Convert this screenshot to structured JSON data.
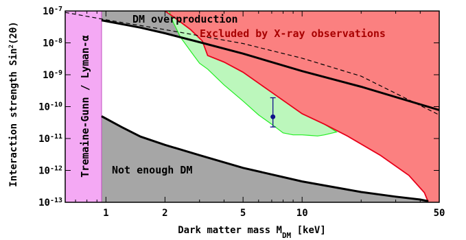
{
  "chart_data": {
    "type": "area",
    "xlabel": "Dark matter mass M_DM [keV]",
    "xlabel_main": "Dark matter mass M",
    "xlabel_sub": "DM",
    "xlabel_unit": " [keV]",
    "ylabel": "Interaction strength Sin²(2θ)",
    "ylabel_main": "Interaction strength Sin",
    "ylabel_sup": "2",
    "ylabel_tail": "(2θ)",
    "xscale": "log",
    "yscale": "log",
    "xlim": [
      0.62,
      50
    ],
    "ylim": [
      1e-13,
      1e-07
    ],
    "x_ticks": [
      {
        "value": 1,
        "label": "1"
      },
      {
        "value": 2,
        "label": "2"
      },
      {
        "value": 5,
        "label": "5"
      },
      {
        "value": 10,
        "label": "10"
      },
      {
        "value": 50,
        "label": "50"
      }
    ],
    "y_ticks": [
      {
        "value": 1e-07,
        "base": "10",
        "exp": "-7"
      },
      {
        "value": 1e-08,
        "base": "10",
        "exp": "-8"
      },
      {
        "value": 1e-09,
        "base": "10",
        "exp": "-9"
      },
      {
        "value": 1e-10,
        "base": "10",
        "exp": "-10"
      },
      {
        "value": 1e-11,
        "base": "10",
        "exp": "-11"
      },
      {
        "value": 1e-12,
        "base": "10",
        "exp": "-12"
      },
      {
        "value": 1e-13,
        "base": "10",
        "exp": "-13"
      }
    ],
    "regions": {
      "tremaine_gunn_lyman_alpha": {
        "label": "Tremaine-Gunn / Lyman-α",
        "x_max": 0.95,
        "color": "#f4a9f4"
      },
      "dm_overproduction": {
        "label": "DM overproduction",
        "color": "#a6a6a6",
        "boundary": [
          [
            0.95,
            5.1e-08
          ],
          [
            1.5,
            3e-08
          ],
          [
            2,
            2e-08
          ],
          [
            3,
            1.05e-08
          ],
          [
            5,
            4.6e-09
          ],
          [
            10,
            1.3e-09
          ],
          [
            20,
            4.2e-10
          ],
          [
            50,
            7.8e-11
          ]
        ]
      },
      "not_enough_dm": {
        "label": "Not enough DM",
        "color": "#a6a6a6",
        "boundary": [
          [
            0.95,
            5e-11
          ],
          [
            1.2,
            2.3e-11
          ],
          [
            1.5,
            1.15e-11
          ],
          [
            2,
            6.3e-12
          ],
          [
            3,
            3e-12
          ],
          [
            5,
            1.2e-12
          ],
          [
            10,
            4.5e-13
          ],
          [
            20,
            2.1e-13
          ],
          [
            30,
            1.5e-13
          ],
          [
            40,
            1.22e-13
          ],
          [
            44,
            1.08e-13
          ]
        ]
      },
      "xray_excluded": {
        "label": "Excluded by X-ray observations",
        "color": "#fb8080",
        "edge_color": "#e8001a",
        "boundary": [
          [
            2.0,
            1e-07
          ],
          [
            2.3,
            5.5e-08
          ],
          [
            2.7,
            2.6e-08
          ],
          [
            3.1,
            1.15e-08
          ],
          [
            3.3,
            4e-09
          ],
          [
            4.0,
            2.5e-09
          ],
          [
            5,
            1.2e-09
          ],
          [
            7,
            2.8e-10
          ],
          [
            10,
            6e-11
          ],
          [
            13,
            2.8e-11
          ],
          [
            17,
            1.2e-11
          ],
          [
            25,
            3e-12
          ],
          [
            35,
            7e-13
          ],
          [
            42,
            2e-13
          ],
          [
            44,
            1e-13
          ]
        ]
      },
      "signal_band": {
        "color": "#bcf7bc",
        "edge_color": "#22ee22",
        "upper": [
          [
            2.0,
            1e-07
          ],
          [
            2.3,
            5.5e-08
          ],
          [
            2.7,
            2.6e-08
          ],
          [
            3.1,
            1.15e-08
          ],
          [
            3.3,
            4e-09
          ],
          [
            4.0,
            2.5e-09
          ],
          [
            5,
            1.2e-09
          ],
          [
            7,
            2.8e-10
          ],
          [
            10,
            6e-11
          ],
          [
            13,
            2.8e-11
          ],
          [
            15,
            1.6e-11
          ]
        ],
        "lower": [
          [
            15,
            1.6e-11
          ],
          [
            13,
            1.3e-11
          ],
          [
            12,
            1.2e-11
          ],
          [
            11,
            1.25e-11
          ],
          [
            10,
            1.3e-11
          ],
          [
            9,
            1.3e-11
          ],
          [
            8,
            1.5e-11
          ],
          [
            7,
            2.8e-11
          ],
          [
            6,
            5.5e-11
          ],
          [
            5,
            1.5e-10
          ],
          [
            4,
            4.8e-10
          ],
          [
            3.3,
            1.5e-09
          ],
          [
            3.0,
            2.3e-09
          ],
          [
            2.7,
            5.5e-09
          ],
          [
            2.4,
            1.5e-08
          ],
          [
            2.2,
            4.5e-08
          ],
          [
            2.1,
            1e-07
          ]
        ]
      }
    },
    "series": [
      {
        "type": "line",
        "style": "dashed",
        "points": [
          [
            0.62,
            9e-08
          ],
          [
            1,
            5.3e-08
          ],
          [
            2,
            2.6e-08
          ],
          [
            5,
            9.5e-09
          ],
          [
            10,
            3.3e-09
          ],
          [
            20,
            9e-10
          ],
          [
            50,
            5.5e-11
          ]
        ]
      }
    ],
    "measurement": {
      "x": 7.1,
      "y": 4.8e-11,
      "y_low": 2.3e-11,
      "y_high": 1.9e-10,
      "color": "#11118a"
    },
    "labels": {
      "dm_overproduction": "DM overproduction",
      "xray": "Excluded by X-ray observations",
      "not_enough": "Not enough DM",
      "tgl": "Tremaine-Gunn / Lyman-α"
    }
  }
}
